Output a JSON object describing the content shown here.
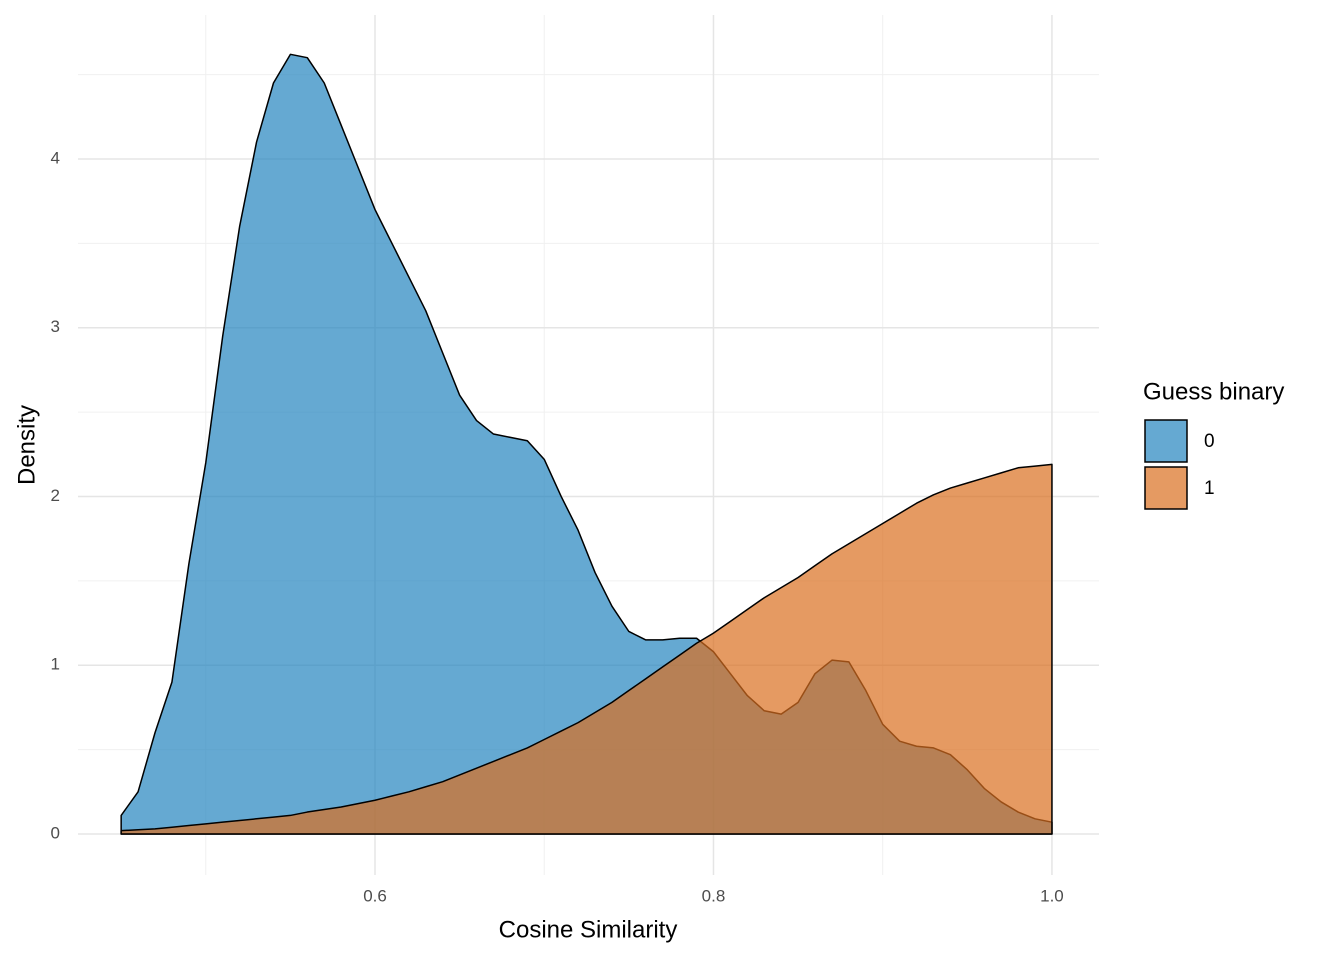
{
  "chart_data": {
    "type": "area",
    "x_label": "Cosine Similarity",
    "y_label": "Density",
    "legend_title": "Guess binary",
    "legend": "right",
    "grid": true,
    "alpha": 0.7,
    "x": [
      0.45,
      0.46,
      0.47,
      0.48,
      0.49,
      0.5,
      0.51,
      0.52,
      0.53,
      0.54,
      0.55,
      0.56,
      0.57,
      0.58,
      0.59,
      0.6,
      0.61,
      0.62,
      0.63,
      0.64,
      0.65,
      0.66,
      0.67,
      0.68,
      0.69,
      0.7,
      0.71,
      0.72,
      0.73,
      0.74,
      0.75,
      0.76,
      0.77,
      0.78,
      0.79,
      0.8,
      0.81,
      0.82,
      0.83,
      0.84,
      0.85,
      0.86,
      0.87,
      0.88,
      0.89,
      0.9,
      0.91,
      0.92,
      0.93,
      0.94,
      0.95,
      0.96,
      0.97,
      0.98,
      0.99,
      1.0
    ],
    "series": [
      {
        "name": "0",
        "color": "#2484bf",
        "values": [
          0.11,
          0.25,
          0.6,
          0.9,
          1.6,
          2.2,
          2.95,
          3.6,
          4.1,
          4.45,
          4.62,
          4.6,
          4.45,
          4.2,
          3.95,
          3.7,
          3.5,
          3.3,
          3.1,
          2.85,
          2.6,
          2.45,
          2.37,
          2.35,
          2.33,
          2.22,
          2.0,
          1.8,
          1.55,
          1.35,
          1.2,
          1.15,
          1.15,
          1.16,
          1.16,
          1.08,
          0.95,
          0.82,
          0.73,
          0.71,
          0.78,
          0.95,
          1.03,
          1.02,
          0.85,
          0.65,
          0.55,
          0.52,
          0.51,
          0.47,
          0.38,
          0.27,
          0.19,
          0.13,
          0.09,
          0.07
        ]
      },
      {
        "name": "1",
        "color": "#da6f20",
        "values": [
          0.02,
          0.025,
          0.03,
          0.04,
          0.05,
          0.06,
          0.07,
          0.08,
          0.09,
          0.1,
          0.11,
          0.13,
          0.145,
          0.16,
          0.18,
          0.2,
          0.225,
          0.25,
          0.28,
          0.31,
          0.35,
          0.39,
          0.43,
          0.47,
          0.51,
          0.56,
          0.61,
          0.66,
          0.72,
          0.78,
          0.85,
          0.92,
          0.99,
          1.06,
          1.13,
          1.19,
          1.26,
          1.33,
          1.4,
          1.46,
          1.52,
          1.59,
          1.66,
          1.72,
          1.78,
          1.84,
          1.9,
          1.96,
          2.01,
          2.05,
          2.08,
          2.11,
          2.14,
          2.17,
          2.18,
          2.19
        ]
      }
    ],
    "xlim": [
      0.4245,
      1.0278
    ],
    "ylim": [
      -0.243,
      4.853
    ],
    "xticks": [
      0.6,
      0.8,
      {
        "value": 1,
        "label": "1.0"
      }
    ],
    "yticks": [
      0,
      1,
      2,
      3,
      4
    ],
    "x_minor_ticks": [
      0.5,
      0.7,
      0.9
    ],
    "y_minor_ticks": [
      0.5,
      1.5,
      2.5,
      3.5,
      4.5
    ]
  }
}
